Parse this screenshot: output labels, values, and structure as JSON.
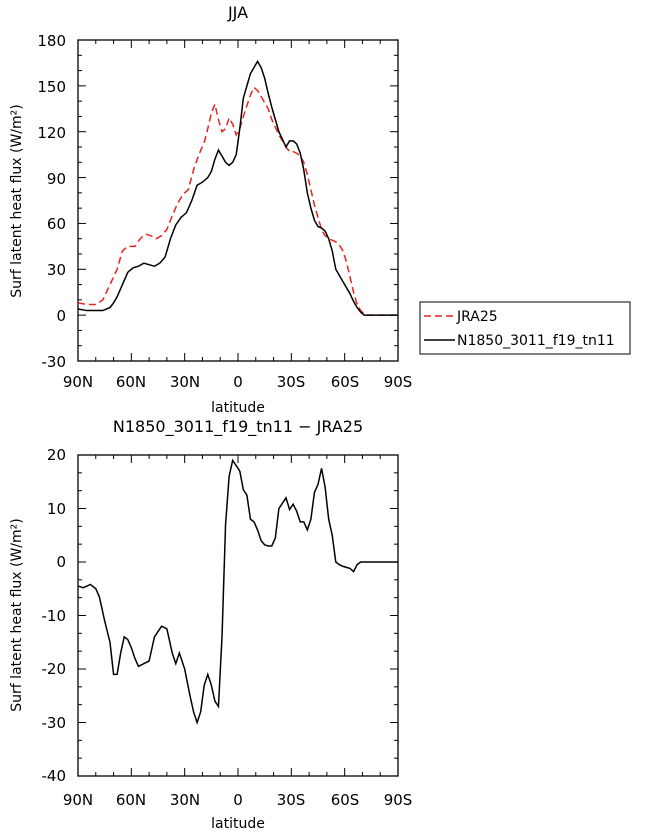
{
  "chart_data": [
    {
      "type": "line",
      "title": "JJA",
      "xlabel": "latitude",
      "ylabel": "Surf latent heat flux (W/m²)",
      "xlim": [
        -90,
        90
      ],
      "ylim": [
        -30,
        180
      ],
      "x_ticks": [
        -90,
        -60,
        -30,
        0,
        30,
        60,
        90
      ],
      "x_tick_labels": [
        "90N",
        "60N",
        "30N",
        "0",
        "30S",
        "60S",
        "90S"
      ],
      "y_ticks": [
        -30,
        0,
        30,
        60,
        90,
        120,
        150,
        180
      ],
      "y_tick_labels": [
        "-30",
        "0",
        "30",
        "60",
        "90",
        "120",
        "150",
        "180"
      ],
      "grid": false,
      "legend_position": "right-outside",
      "series": [
        {
          "name": "JRA25",
          "color": "#e8231f",
          "dash": "dashed",
          "x": [
            -90,
            -85,
            -80,
            -76,
            -72,
            -68,
            -65,
            -62,
            -58,
            -55,
            -52,
            -49,
            -46,
            -43,
            -40,
            -37,
            -34,
            -31,
            -28,
            -25,
            -22,
            -19,
            -17,
            -15,
            -13,
            -11,
            -9,
            -7,
            -5,
            -3,
            -1,
            1,
            3,
            5,
            7,
            9,
            11,
            13,
            15,
            17,
            19,
            21,
            23,
            25,
            27,
            29,
            31,
            33,
            35,
            37,
            39,
            41,
            43,
            45,
            47,
            49,
            51,
            53,
            55,
            57,
            59,
            61,
            63,
            65,
            67,
            69,
            71,
            73,
            75,
            78,
            81,
            84,
            87,
            90
          ],
          "y": [
            8,
            7,
            7,
            10,
            20,
            30,
            42,
            45,
            45,
            50,
            53,
            52,
            50,
            52,
            56,
            65,
            73,
            79,
            82,
            95,
            105,
            113,
            122,
            132,
            138,
            128,
            120,
            122,
            129,
            125,
            118,
            122,
            130,
            137,
            144,
            149,
            147,
            143,
            139,
            135,
            128,
            123,
            118,
            114,
            110,
            107,
            107,
            106,
            104,
            100,
            92,
            82,
            72,
            64,
            56,
            52,
            50,
            49,
            48,
            46,
            42,
            35,
            25,
            15,
            7,
            3,
            1,
            0,
            0,
            0,
            0,
            0,
            0,
            0
          ]
        },
        {
          "name": "N1850_3011_f19_tn11",
          "color": "#000000",
          "dash": "solid",
          "x": [
            -90,
            -85,
            -80,
            -76,
            -72,
            -70,
            -68,
            -65,
            -62,
            -59,
            -56,
            -53,
            -50,
            -47,
            -44,
            -41,
            -38,
            -35,
            -32,
            -29,
            -26,
            -23,
            -20,
            -17,
            -15,
            -13,
            -11,
            -9,
            -7,
            -5,
            -3,
            -1,
            1,
            3,
            5,
            7,
            9,
            11,
            13,
            15,
            17,
            19,
            21,
            23,
            25,
            27,
            29,
            31,
            33,
            35,
            37,
            39,
            41,
            43,
            45,
            47,
            49,
            51,
            53,
            55,
            57,
            59,
            61,
            63,
            65,
            67,
            69,
            71,
            73,
            75,
            77,
            79,
            81,
            84,
            87,
            90
          ],
          "y": [
            4,
            3,
            3,
            3,
            5,
            8,
            12,
            20,
            28,
            31,
            32,
            34,
            33,
            32,
            34,
            38,
            50,
            59,
            64,
            67,
            75,
            85,
            87,
            90,
            94,
            102,
            108,
            104,
            100,
            98,
            100,
            105,
            122,
            142,
            150,
            158,
            162,
            166,
            162,
            155,
            145,
            136,
            128,
            120,
            115,
            110,
            114,
            114,
            112,
            106,
            95,
            80,
            70,
            62,
            58,
            57,
            55,
            50,
            42,
            30,
            26,
            22,
            18,
            14,
            9,
            5,
            2,
            0,
            0,
            0,
            0,
            0,
            0,
            0,
            0,
            0
          ]
        }
      ]
    },
    {
      "type": "line",
      "title": "N1850_3011_f19_tn11 − JRA25",
      "xlabel": "latitude",
      "ylabel": "Surf latent heat flux (W/m²)",
      "xlim": [
        -90,
        90
      ],
      "ylim": [
        -40,
        20
      ],
      "x_ticks": [
        -90,
        -60,
        -30,
        0,
        30,
        60,
        90
      ],
      "x_tick_labels": [
        "90N",
        "60N",
        "30N",
        "0",
        "30S",
        "60S",
        "90S"
      ],
      "y_ticks": [
        -40,
        -30,
        -20,
        -10,
        0,
        10,
        20
      ],
      "y_tick_labels": [
        "-40",
        "-30",
        "-20",
        "-10",
        "0",
        "10",
        "20"
      ],
      "grid": false,
      "series": [
        {
          "color": "#000000",
          "dash": "solid",
          "x": [
            -90,
            -87,
            -83,
            -80,
            -78,
            -75,
            -72,
            -70,
            -68,
            -66,
            -64,
            -62,
            -60,
            -58,
            -56,
            -53,
            -50,
            -47,
            -45,
            -43,
            -40,
            -37,
            -35,
            -33,
            -30,
            -27,
            -25,
            -23,
            -21,
            -19,
            -17,
            -15,
            -13,
            -11,
            -9,
            -7,
            -5,
            -3,
            -1,
            1,
            3,
            5,
            7,
            9,
            11,
            13,
            15,
            17,
            19,
            21,
            23,
            25,
            27,
            29,
            31,
            33,
            35,
            37,
            39,
            41,
            43,
            45,
            47,
            49,
            51,
            53,
            55,
            57,
            59,
            61,
            63,
            65,
            67,
            69,
            71,
            73,
            75,
            77,
            79,
            81,
            83,
            85,
            87,
            90
          ],
          "y": [
            -4.5,
            -4.8,
            -4.2,
            -5,
            -6.5,
            -11,
            -15,
            -21,
            -21,
            -17,
            -14,
            -14.5,
            -16,
            -18,
            -19.5,
            -19,
            -18.5,
            -14,
            -13,
            -12,
            -12.5,
            -17,
            -19,
            -17,
            -20,
            -25,
            -28,
            -30,
            -28,
            -23,
            -21,
            -23,
            -26,
            -27,
            -14,
            7,
            16,
            19,
            18,
            17,
            13.5,
            12.5,
            8,
            7.5,
            6,
            4,
            3.2,
            3,
            3,
            4.5,
            10,
            11,
            12,
            9.8,
            10.8,
            9.5,
            7.5,
            7.5,
            6,
            8,
            13,
            14.5,
            17.5,
            14,
            8,
            5,
            0,
            -0.5,
            -0.8,
            -1,
            -1.2,
            -1.8,
            -0.5,
            0,
            0,
            0,
            0,
            0,
            0,
            0,
            0,
            0,
            0,
            0
          ]
        }
      ]
    }
  ],
  "ui": {
    "top": {
      "title": "JJA",
      "xlabel": "latitude",
      "ylabel": "Surf latent heat flux (W/m²)",
      "y_tick_labels": [
        "-30",
        "0",
        "30",
        "60",
        "90",
        "120",
        "150",
        "180"
      ],
      "x_tick_labels": [
        "90N",
        "60N",
        "30N",
        "0",
        "30S",
        "60S",
        "90S"
      ],
      "legend": [
        "JRA25",
        "N1850_3011_f19_tn11"
      ]
    },
    "bottom": {
      "title": "N1850_3011_f19_tn11 − JRA25",
      "xlabel": "latitude",
      "ylabel": "Surf latent heat flux (W/m²)",
      "y_tick_labels": [
        "-40",
        "-30",
        "-20",
        "-10",
        "0",
        "10",
        "20"
      ],
      "x_tick_labels": [
        "90N",
        "60N",
        "30N",
        "0",
        "30S",
        "60S",
        "90S"
      ]
    },
    "colors": {
      "jra25": "#e8231f",
      "model": "#000000",
      "axes": "#000000"
    }
  }
}
